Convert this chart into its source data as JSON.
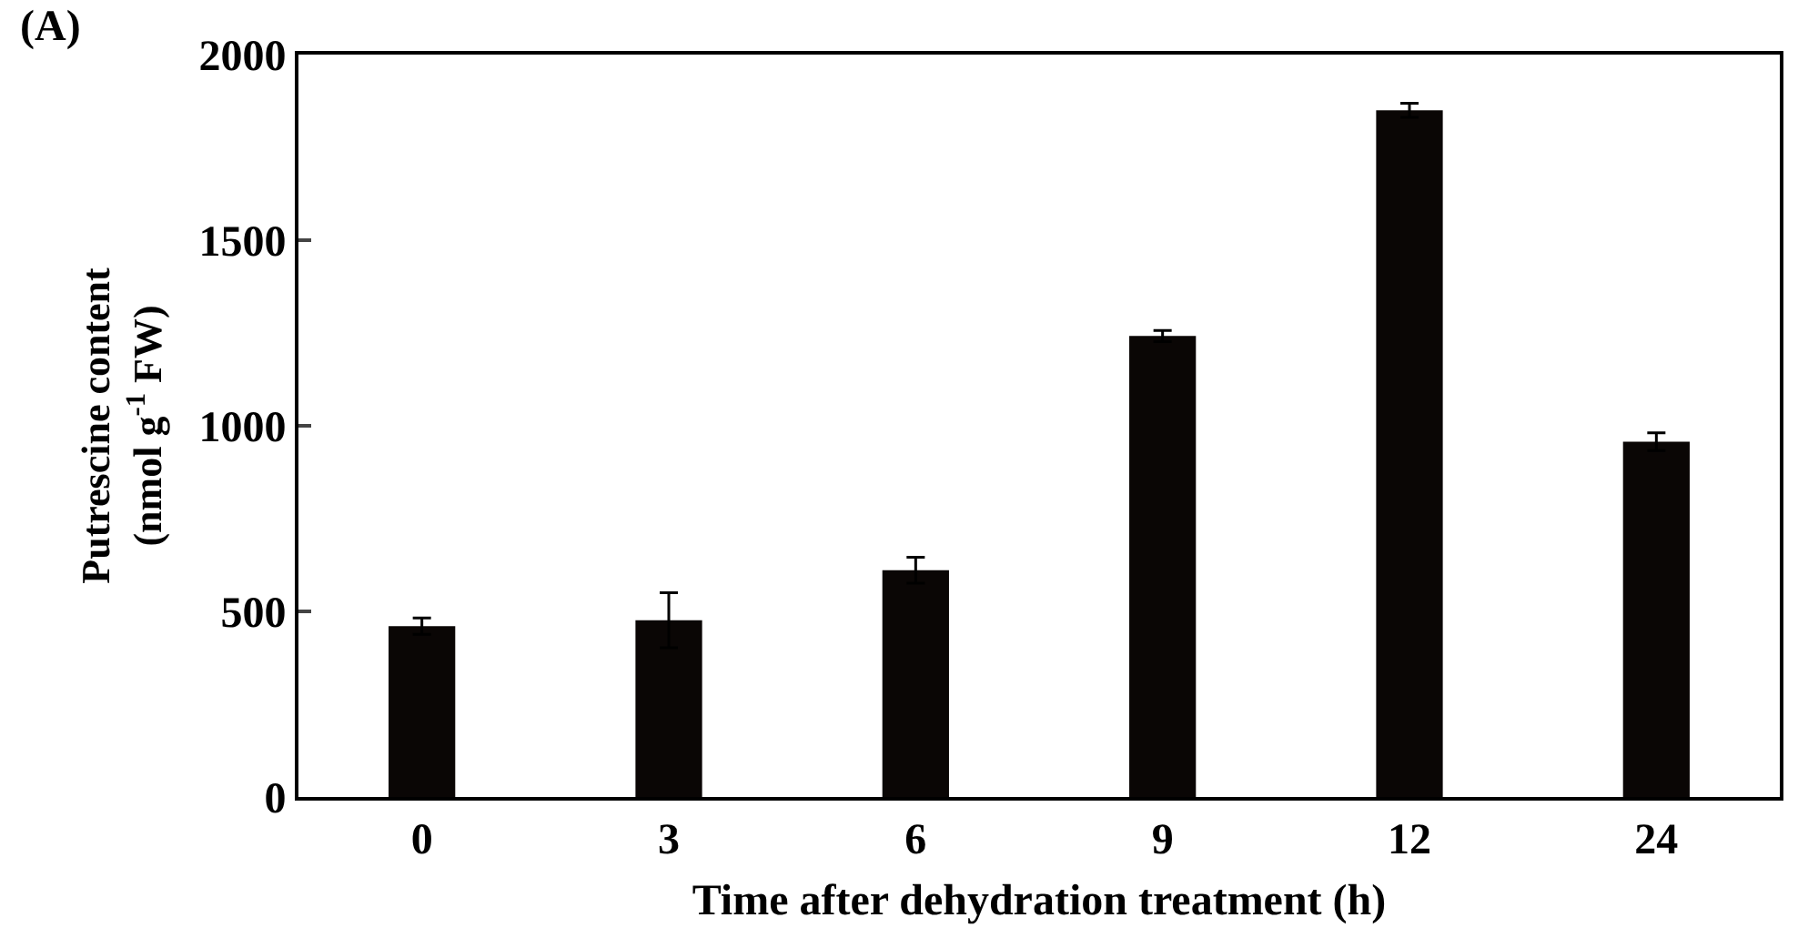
{
  "chart_data": {
    "type": "bar",
    "categories": [
      "0",
      "3",
      "6",
      "9",
      "12",
      "24"
    ],
    "values": [
      460,
      476,
      611,
      1242,
      1850,
      957
    ],
    "errors": [
      22,
      74,
      35,
      15,
      19,
      24
    ],
    "color": "#0a0605",
    "xlabel": "Time after dehydration treatment (h)",
    "ylabel": "Putrescine content\n(nmol g$^{-1}$ FW)",
    "ylim": [
      0,
      2000
    ],
    "yticks": [
      0,
      500,
      1000,
      1500,
      2000
    ],
    "annotations": [
      "(A)"
    ]
  }
}
